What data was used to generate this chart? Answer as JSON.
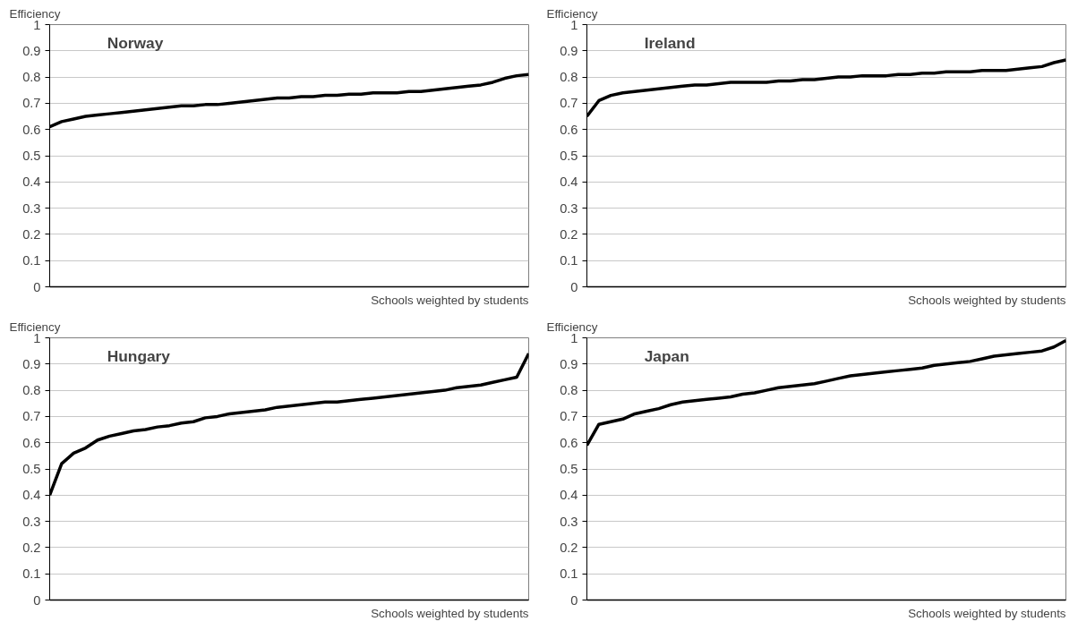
{
  "chart_data": [
    {
      "type": "line",
      "title": "Norway",
      "ylabel": "Efficiency",
      "xlabel": "Schools weighted by students",
      "ylim": [
        0,
        1
      ],
      "yticks": [
        0,
        0.1,
        0.2,
        0.3,
        0.4,
        0.5,
        0.6,
        0.7,
        0.8,
        0.9,
        1
      ],
      "grid": "y",
      "line_style": "solid",
      "categories": [
        null,
        null,
        null,
        null,
        null,
        null,
        null,
        null,
        null,
        null,
        null,
        null,
        null,
        null,
        null,
        null,
        null,
        null,
        null,
        null,
        null,
        null,
        null,
        null,
        null,
        null,
        null,
        null,
        null,
        null,
        null,
        null,
        null,
        null,
        null,
        null,
        null,
        null,
        null,
        null,
        null
      ],
      "series": [
        {
          "color": "#000000",
          "values": [
            0.61,
            0.63,
            0.64,
            0.65,
            0.655,
            0.66,
            0.665,
            0.67,
            0.675,
            0.68,
            0.685,
            0.69,
            0.69,
            0.695,
            0.695,
            0.7,
            0.705,
            0.71,
            0.715,
            0.72,
            0.72,
            0.725,
            0.725,
            0.73,
            0.73,
            0.735,
            0.735,
            0.74,
            0.74,
            0.74,
            0.745,
            0.745,
            0.75,
            0.755,
            0.76,
            0.765,
            0.77,
            0.78,
            0.795,
            0.805,
            0.81
          ]
        }
      ]
    },
    {
      "type": "line",
      "title": "Ireland",
      "ylabel": "Efficiency",
      "xlabel": "Schools weighted by students",
      "ylim": [
        0,
        1
      ],
      "yticks": [
        0,
        0.1,
        0.2,
        0.3,
        0.4,
        0.5,
        0.6,
        0.7,
        0.8,
        0.9,
        1
      ],
      "grid": "y",
      "line_style": "solid",
      "categories": [
        null,
        null,
        null,
        null,
        null,
        null,
        null,
        null,
        null,
        null,
        null,
        null,
        null,
        null,
        null,
        null,
        null,
        null,
        null,
        null,
        null,
        null,
        null,
        null,
        null,
        null,
        null,
        null,
        null,
        null,
        null,
        null,
        null,
        null,
        null,
        null,
        null,
        null,
        null,
        null,
        null
      ],
      "series": [
        {
          "color": "#000000",
          "values": [
            0.65,
            0.71,
            0.73,
            0.74,
            0.745,
            0.75,
            0.755,
            0.76,
            0.765,
            0.77,
            0.77,
            0.775,
            0.78,
            0.78,
            0.78,
            0.78,
            0.785,
            0.785,
            0.79,
            0.79,
            0.795,
            0.8,
            0.8,
            0.805,
            0.805,
            0.805,
            0.81,
            0.81,
            0.815,
            0.815,
            0.82,
            0.82,
            0.82,
            0.825,
            0.825,
            0.825,
            0.83,
            0.835,
            0.84,
            0.855,
            0.865
          ]
        }
      ]
    },
    {
      "type": "line",
      "title": "Hungary",
      "ylabel": "Efficiency",
      "xlabel": "Schools weighted by students",
      "ylim": [
        0,
        1
      ],
      "yticks": [
        0,
        0.1,
        0.2,
        0.3,
        0.4,
        0.5,
        0.6,
        0.7,
        0.8,
        0.9,
        1
      ],
      "grid": "y",
      "line_style": "solid",
      "categories": [
        null,
        null,
        null,
        null,
        null,
        null,
        null,
        null,
        null,
        null,
        null,
        null,
        null,
        null,
        null,
        null,
        null,
        null,
        null,
        null,
        null,
        null,
        null,
        null,
        null,
        null,
        null,
        null,
        null,
        null,
        null,
        null,
        null,
        null,
        null,
        null,
        null,
        null,
        null,
        null,
        null
      ],
      "series": [
        {
          "color": "#000000",
          "values": [
            0.4,
            0.52,
            0.56,
            0.58,
            0.61,
            0.625,
            0.635,
            0.645,
            0.65,
            0.66,
            0.665,
            0.675,
            0.68,
            0.695,
            0.7,
            0.71,
            0.715,
            0.72,
            0.725,
            0.735,
            0.74,
            0.745,
            0.75,
            0.755,
            0.755,
            0.76,
            0.765,
            0.77,
            0.775,
            0.78,
            0.785,
            0.79,
            0.795,
            0.8,
            0.81,
            0.815,
            0.82,
            0.83,
            0.84,
            0.85,
            0.94
          ]
        }
      ]
    },
    {
      "type": "line",
      "title": "Japan",
      "ylabel": "Efficiency",
      "xlabel": "Schools weighted by students",
      "ylim": [
        0,
        1
      ],
      "yticks": [
        0,
        0.1,
        0.2,
        0.3,
        0.4,
        0.5,
        0.6,
        0.7,
        0.8,
        0.9,
        1
      ],
      "grid": "y",
      "line_style": "solid",
      "categories": [
        null,
        null,
        null,
        null,
        null,
        null,
        null,
        null,
        null,
        null,
        null,
        null,
        null,
        null,
        null,
        null,
        null,
        null,
        null,
        null,
        null,
        null,
        null,
        null,
        null,
        null,
        null,
        null,
        null,
        null,
        null,
        null,
        null,
        null,
        null,
        null,
        null,
        null,
        null,
        null,
        null
      ],
      "series": [
        {
          "color": "#000000",
          "values": [
            0.59,
            0.67,
            0.68,
            0.69,
            0.71,
            0.72,
            0.73,
            0.745,
            0.755,
            0.76,
            0.765,
            0.77,
            0.775,
            0.785,
            0.79,
            0.8,
            0.81,
            0.815,
            0.82,
            0.825,
            0.835,
            0.845,
            0.855,
            0.86,
            0.865,
            0.87,
            0.875,
            0.88,
            0.885,
            0.895,
            0.9,
            0.905,
            0.91,
            0.92,
            0.93,
            0.935,
            0.94,
            0.945,
            0.95,
            0.965,
            0.99
          ]
        }
      ]
    }
  ]
}
